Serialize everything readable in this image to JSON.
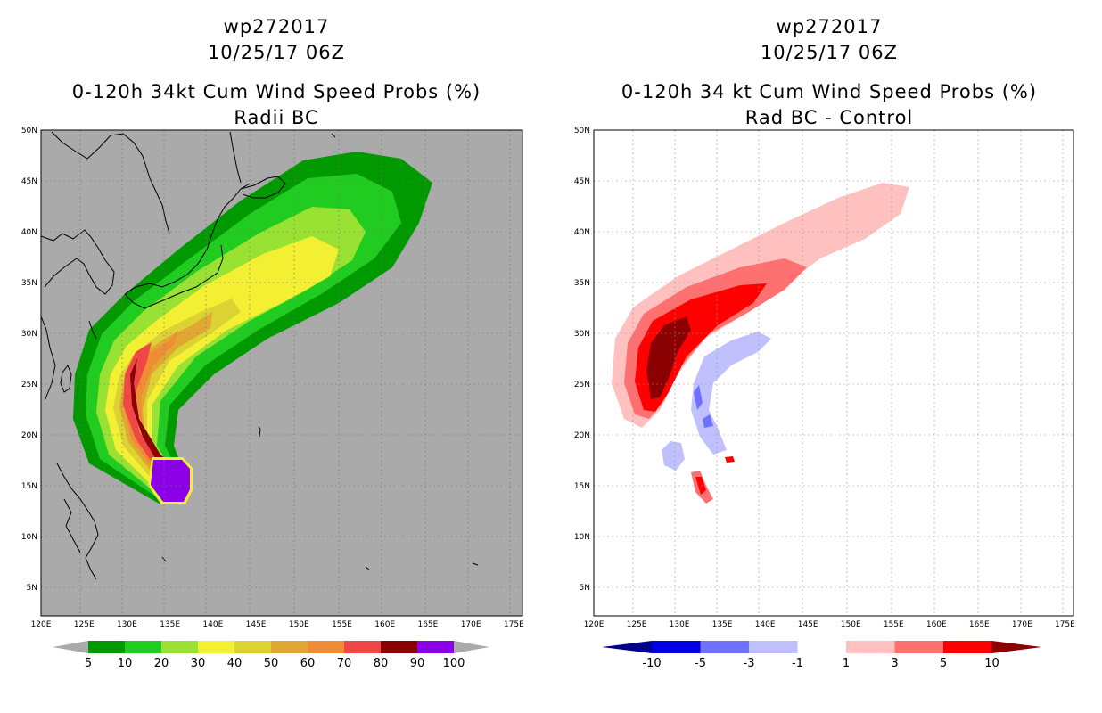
{
  "left_panel": {
    "storm_id": "wp272017",
    "datetime": "10/25/17 06Z",
    "title_line1": "0-120h 34kt Cum Wind Speed Probs (%)",
    "title_line2": "Radii BC",
    "colorbar": {
      "labels": [
        "5",
        "10",
        "20",
        "30",
        "40",
        "50",
        "60",
        "70",
        "80",
        "90",
        "100"
      ],
      "colors": [
        "#009900",
        "#21cc21",
        "#99e233",
        "#f3f033",
        "#dcd233",
        "#e0a833",
        "#f08c33",
        "#ef4646",
        "#8b0000",
        "#8b00e6"
      ]
    }
  },
  "right_panel": {
    "storm_id": "wp272017",
    "datetime": "10/25/17 06Z",
    "title_line1": "0-120h 34 kt Cum Wind Speed Probs (%)",
    "title_line2": "Rad BC - Control",
    "colorbar": {
      "labels": [
        "-10",
        "-5",
        "-3",
        "-1",
        "1",
        "3",
        "5",
        "10"
      ],
      "colors": [
        "#0000e0",
        "#7070ff",
        "#c0c0ff",
        "#ffffff",
        "#ffc0c0",
        "#ff7070",
        "#ff0000"
      ],
      "end_colors": [
        "#00008b",
        "#8b0000"
      ]
    }
  },
  "axes": {
    "lon_labels": [
      "120E",
      "125E",
      "130E",
      "135E",
      "140E",
      "145E",
      "150E",
      "155E",
      "160E",
      "165E",
      "170E",
      "175E"
    ],
    "lat_labels": [
      "50N",
      "45N",
      "40N",
      "35N",
      "30N",
      "25N",
      "20N",
      "15N",
      "10N",
      "5N"
    ]
  }
}
